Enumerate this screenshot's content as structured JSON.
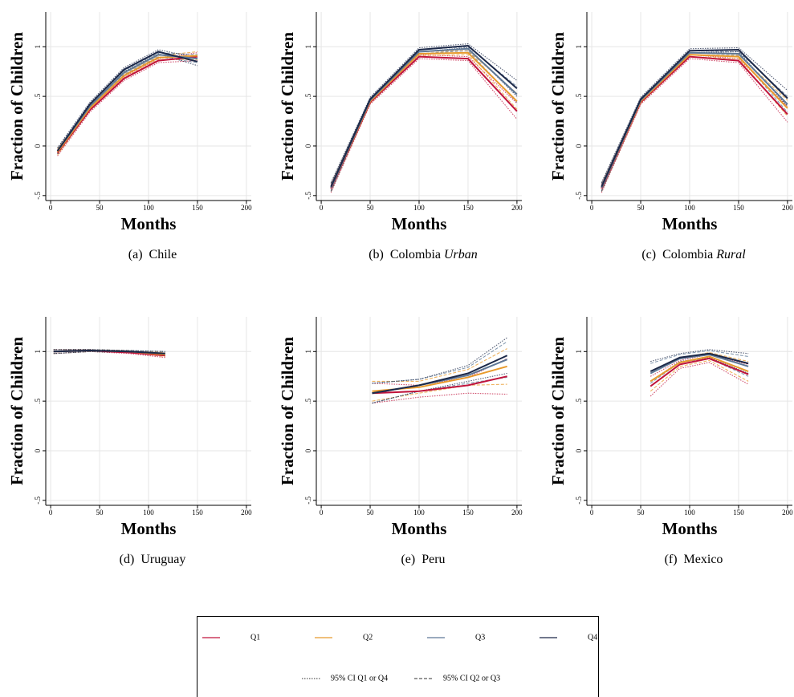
{
  "chart_data": [
    {
      "type": "line",
      "caption_tag": "(a)",
      "caption": "Chile",
      "ylabel": "Fraction of Children",
      "xlabel": "Months",
      "xlim": [
        -5,
        205
      ],
      "xticks": [
        0,
        50,
        100,
        150,
        200
      ],
      "ylim": [
        -0.55,
        1.35
      ],
      "yticks": [
        {
          "value": -0.5,
          "label": "-.5"
        },
        0,
        {
          "value": 0.5,
          "label": ".5"
        },
        1
      ],
      "grid": true,
      "x": [
        7,
        40,
        75,
        110,
        150
      ],
      "series": [
        {
          "name": "Q1",
          "color": "#c0143c",
          "values": [
            -0.07,
            0.36,
            0.68,
            0.86,
            0.9
          ],
          "lower": [
            -0.1,
            0.34,
            0.66,
            0.84,
            0.86
          ],
          "upper": [
            -0.04,
            0.38,
            0.7,
            0.88,
            0.94
          ]
        },
        {
          "name": "Q2",
          "color": "#e89a2c",
          "values": [
            -0.06,
            0.38,
            0.71,
            0.89,
            0.91
          ],
          "lower": [
            -0.09,
            0.36,
            0.69,
            0.87,
            0.87
          ],
          "upper": [
            -0.03,
            0.4,
            0.73,
            0.91,
            0.95
          ]
        },
        {
          "name": "Q3",
          "color": "#5e7896",
          "values": [
            -0.05,
            0.4,
            0.74,
            0.92,
            0.88
          ],
          "lower": [
            -0.08,
            0.38,
            0.72,
            0.9,
            0.84
          ],
          "upper": [
            -0.02,
            0.42,
            0.76,
            0.94,
            0.92
          ]
        },
        {
          "name": "Q4",
          "color": "#1c2848",
          "values": [
            -0.05,
            0.42,
            0.77,
            0.95,
            0.85
          ],
          "lower": [
            -0.08,
            0.4,
            0.75,
            0.93,
            0.81
          ],
          "upper": [
            -0.02,
            0.44,
            0.79,
            0.97,
            0.89
          ]
        }
      ]
    },
    {
      "type": "line",
      "caption_tag": "(b)",
      "caption": "Colombia",
      "caption_italic": "Urban",
      "ylabel": "Fraction of Children",
      "xlabel": "Months",
      "xlim": [
        -5,
        205
      ],
      "xticks": [
        0,
        50,
        100,
        150,
        200
      ],
      "ylim": [
        -0.55,
        1.35
      ],
      "yticks": [
        {
          "value": -0.5,
          "label": "-.5"
        },
        0,
        {
          "value": 0.5,
          "label": ".5"
        },
        1
      ],
      "grid": true,
      "x": [
        10,
        50,
        100,
        150,
        200
      ],
      "series": [
        {
          "name": "Q1",
          "color": "#c0143c",
          "values": [
            -0.43,
            0.44,
            0.9,
            0.88,
            0.35
          ],
          "lower": [
            -0.47,
            0.42,
            0.88,
            0.86,
            0.27
          ],
          "upper": [
            -0.39,
            0.46,
            0.92,
            0.9,
            0.43
          ]
        },
        {
          "name": "Q2",
          "color": "#e89a2c",
          "values": [
            -0.42,
            0.45,
            0.93,
            0.94,
            0.45
          ],
          "lower": [
            -0.46,
            0.43,
            0.91,
            0.92,
            0.37
          ],
          "upper": [
            -0.38,
            0.47,
            0.95,
            0.96,
            0.53
          ]
        },
        {
          "name": "Q3",
          "color": "#5e7896",
          "values": [
            -0.42,
            0.46,
            0.95,
            0.98,
            0.52
          ],
          "lower": [
            -0.46,
            0.44,
            0.93,
            0.96,
            0.44
          ],
          "upper": [
            -0.38,
            0.48,
            0.97,
            1.0,
            0.6
          ]
        },
        {
          "name": "Q4",
          "color": "#1c2848",
          "values": [
            -0.41,
            0.47,
            0.97,
            1.01,
            0.58
          ],
          "lower": [
            -0.45,
            0.45,
            0.95,
            0.99,
            0.5
          ],
          "upper": [
            -0.37,
            0.49,
            0.99,
            1.03,
            0.66
          ]
        }
      ]
    },
    {
      "type": "line",
      "caption_tag": "(c)",
      "caption": "Colombia",
      "caption_italic": "Rural",
      "ylabel": "Fraction of Children",
      "xlabel": "Months",
      "xlim": [
        -5,
        205
      ],
      "xticks": [
        0,
        50,
        100,
        150,
        200
      ],
      "ylim": [
        -0.55,
        1.35
      ],
      "yticks": [
        {
          "value": -0.5,
          "label": "-.5"
        },
        0,
        {
          "value": 0.5,
          "label": ".5"
        },
        1
      ],
      "grid": true,
      "x": [
        10,
        50,
        100,
        150,
        200
      ],
      "series": [
        {
          "name": "Q1",
          "color": "#c0143c",
          "values": [
            -0.43,
            0.44,
            0.9,
            0.86,
            0.32
          ],
          "lower": [
            -0.47,
            0.42,
            0.88,
            0.84,
            0.24
          ],
          "upper": [
            -0.39,
            0.46,
            0.92,
            0.88,
            0.4
          ]
        },
        {
          "name": "Q2",
          "color": "#e89a2c",
          "values": [
            -0.42,
            0.45,
            0.92,
            0.9,
            0.38
          ],
          "lower": [
            -0.46,
            0.43,
            0.9,
            0.88,
            0.3
          ],
          "upper": [
            -0.38,
            0.47,
            0.94,
            0.92,
            0.46
          ]
        },
        {
          "name": "Q3",
          "color": "#5e7896",
          "values": [
            -0.42,
            0.46,
            0.94,
            0.93,
            0.42
          ],
          "lower": [
            -0.46,
            0.44,
            0.92,
            0.91,
            0.34
          ],
          "upper": [
            -0.38,
            0.48,
            0.96,
            0.95,
            0.5
          ]
        },
        {
          "name": "Q4",
          "color": "#1c2848",
          "values": [
            -0.41,
            0.47,
            0.96,
            0.97,
            0.48
          ],
          "lower": [
            -0.45,
            0.45,
            0.94,
            0.95,
            0.4
          ],
          "upper": [
            -0.37,
            0.49,
            0.98,
            0.99,
            0.56
          ]
        }
      ]
    },
    {
      "type": "line",
      "caption_tag": "(d)",
      "caption": "Uruguay",
      "ylabel": "Fraction of Children",
      "xlabel": "Months",
      "xlim": [
        -5,
        205
      ],
      "xticks": [
        0,
        50,
        100,
        150,
        200
      ],
      "ylim": [
        -0.55,
        1.35
      ],
      "yticks": [
        {
          "value": -0.5,
          "label": "-.5"
        },
        0,
        {
          "value": 0.5,
          "label": ".5"
        },
        1
      ],
      "grid": true,
      "x": [
        3,
        40,
        80,
        117
      ],
      "series": [
        {
          "name": "Q1",
          "color": "#c0143c",
          "values": [
            1.0,
            1.01,
            0.99,
            0.96
          ],
          "lower": [
            0.98,
            1.0,
            0.98,
            0.94
          ],
          "upper": [
            1.02,
            1.02,
            1.0,
            0.98
          ]
        },
        {
          "name": "Q2",
          "color": "#e89a2c",
          "values": [
            1.0,
            1.01,
            1.0,
            0.97
          ],
          "lower": [
            0.98,
            1.0,
            0.99,
            0.95
          ],
          "upper": [
            1.02,
            1.02,
            1.01,
            0.99
          ]
        },
        {
          "name": "Q3",
          "color": "#5e7896",
          "values": [
            1.0,
            1.01,
            1.0,
            0.98
          ],
          "lower": [
            0.98,
            1.0,
            0.99,
            0.96
          ],
          "upper": [
            1.02,
            1.02,
            1.01,
            1.0
          ]
        },
        {
          "name": "Q4",
          "color": "#1c2848",
          "values": [
            1.0,
            1.01,
            1.0,
            0.98
          ],
          "lower": [
            0.98,
            1.0,
            0.99,
            0.96
          ],
          "upper": [
            1.02,
            1.02,
            1.01,
            1.0
          ]
        }
      ]
    },
    {
      "type": "line",
      "caption_tag": "(e)",
      "caption": "Peru",
      "ylabel": "Fraction of Children",
      "xlabel": "Months",
      "xlim": [
        -5,
        205
      ],
      "xticks": [
        0,
        50,
        100,
        150,
        200
      ],
      "ylim": [
        -0.55,
        1.35
      ],
      "yticks": [
        {
          "value": -0.5,
          "label": "-.5"
        },
        0,
        {
          "value": 0.5,
          "label": ".5"
        },
        1
      ],
      "grid": true,
      "x": [
        52,
        100,
        150,
        190
      ],
      "series": [
        {
          "name": "Q1",
          "color": "#c0143c",
          "values": [
            0.58,
            0.6,
            0.66,
            0.75
          ],
          "lower": [
            0.48,
            0.54,
            0.58,
            0.57
          ],
          "upper": [
            0.68,
            0.66,
            0.74,
            0.93
          ]
        },
        {
          "name": "Q2",
          "color": "#e89a2c",
          "values": [
            0.6,
            0.64,
            0.74,
            0.85
          ],
          "lower": [
            0.5,
            0.58,
            0.66,
            0.67
          ],
          "upper": [
            0.7,
            0.7,
            0.82,
            1.03
          ]
        },
        {
          "name": "Q3",
          "color": "#5e7896",
          "values": [
            0.58,
            0.66,
            0.76,
            0.92
          ],
          "lower": [
            0.48,
            0.6,
            0.68,
            0.74
          ],
          "upper": [
            0.68,
            0.72,
            0.84,
            1.1
          ]
        },
        {
          "name": "Q4",
          "color": "#1c2848",
          "values": [
            0.58,
            0.66,
            0.78,
            0.96
          ],
          "lower": [
            0.48,
            0.6,
            0.7,
            0.78
          ],
          "upper": [
            0.68,
            0.72,
            0.86,
            1.14
          ]
        }
      ]
    },
    {
      "type": "line",
      "caption_tag": "(f)",
      "caption": "Mexico",
      "ylabel": "Fraction of Children",
      "xlabel": "Months",
      "xlim": [
        -5,
        205
      ],
      "xticks": [
        0,
        50,
        100,
        150,
        200
      ],
      "ylim": [
        -0.55,
        1.35
      ],
      "yticks": [
        {
          "value": -0.5,
          "label": "-.5"
        },
        0,
        {
          "value": 0.5,
          "label": ".5"
        },
        1
      ],
      "grid": true,
      "x": [
        60,
        90,
        120,
        160
      ],
      "series": [
        {
          "name": "Q1",
          "color": "#c0143c",
          "values": [
            0.65,
            0.87,
            0.93,
            0.77
          ],
          "lower": [
            0.55,
            0.83,
            0.89,
            0.67
          ],
          "upper": [
            0.75,
            0.91,
            0.97,
            0.87
          ]
        },
        {
          "name": "Q2",
          "color": "#e89a2c",
          "values": [
            0.7,
            0.89,
            0.95,
            0.8
          ],
          "lower": [
            0.6,
            0.85,
            0.91,
            0.7
          ],
          "upper": [
            0.8,
            0.93,
            0.99,
            0.9
          ]
        },
        {
          "name": "Q3",
          "color": "#5e7896",
          "values": [
            0.78,
            0.93,
            0.97,
            0.85
          ],
          "lower": [
            0.68,
            0.89,
            0.93,
            0.75
          ],
          "upper": [
            0.88,
            0.97,
            1.01,
            0.95
          ]
        },
        {
          "name": "Q4",
          "color": "#1c2848",
          "values": [
            0.8,
            0.94,
            0.98,
            0.88
          ],
          "lower": [
            0.7,
            0.9,
            0.94,
            0.78
          ],
          "upper": [
            0.9,
            0.98,
            1.02,
            0.98
          ]
        }
      ]
    }
  ],
  "legend": {
    "ci_labels": [
      "95% CI Q1 or Q4",
      "95% CI Q2 or Q3"
    ]
  }
}
